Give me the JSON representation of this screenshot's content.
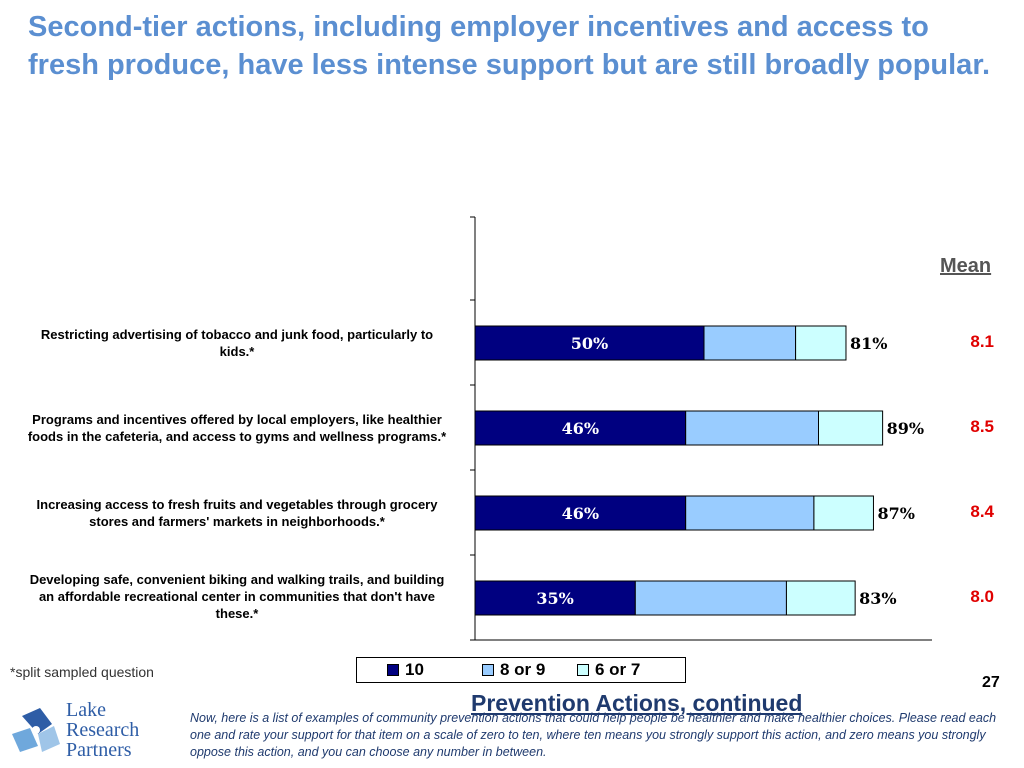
{
  "title": "Second-tier actions, including employer incentives and access to fresh produce, have less intense support but are still broadly popular.",
  "mean_header": "Mean",
  "chart_data": {
    "type": "bar",
    "stacked": true,
    "orientation": "horizontal",
    "categories": [
      "Restricting advertising of tobacco and junk food, particularly to kids.*",
      "Programs and incentives offered by local employers, like healthier foods in the cafeteria, and access to gyms and wellness programs.*",
      "Increasing access to fresh fruits and vegetables through grocery stores and farmers' markets in neighborhoods.*",
      "Developing safe, convenient biking and walking trails, and building an affordable recreational center in communities that don't have these.*"
    ],
    "category_lines": [
      [
        "Restricting advertising of tobacco and junk food, particularly to",
        "kids.*"
      ],
      [
        "Programs and incentives offered by local employers, like healthier",
        "foods in the cafeteria, and access to gyms and wellness programs.*"
      ],
      [
        "Increasing access to fresh fruits and vegetables through grocery",
        "stores and farmers' markets in neighborhoods.*"
      ],
      [
        "Developing safe, convenient biking and walking trails, and building",
        "an affordable recreational center in communities that don't have",
        "these.*"
      ]
    ],
    "series": [
      {
        "name": "10",
        "values": [
          50,
          46,
          46,
          35
        ],
        "color": "#000080"
      },
      {
        "name": "8 or 9",
        "values": [
          20,
          29,
          28,
          33
        ],
        "color": "#99ccff"
      },
      {
        "name": "6 or 7",
        "values": [
          11,
          14,
          13,
          15
        ],
        "color": "#ccffff"
      }
    ],
    "in_bar_labels": [
      "50%",
      "46%",
      "46%",
      "35%"
    ],
    "total_labels": [
      "81%",
      "89%",
      "87%",
      "83%"
    ],
    "means": [
      "8.1",
      "8.5",
      "8.4",
      "8.0"
    ],
    "xlim": [
      0,
      100
    ],
    "legend_position": "bottom",
    "grid": false
  },
  "legend": [
    {
      "label": "10",
      "color": "#000080"
    },
    {
      "label": "8 or 9",
      "color": "#99ccff"
    },
    {
      "label": "6 or 7",
      "color": "#ccffff"
    }
  ],
  "footnote": "*split sampled question",
  "page_number": "27",
  "section_title": "Prevention Actions, continued",
  "question_text": "Now, here is a list of examples of community prevention actions that could help people be healthier and make healthier choices. Please read each one and rate your support for that item on a scale of zero to ten, where ten means you strongly support this action, and zero means you strongly oppose this action, and you can choose any number in between.",
  "logo": {
    "lines": [
      "Lake",
      "Research",
      "Partners"
    ],
    "colors": [
      "#2e5da6",
      "#6fa8dc",
      "#9fc5e8"
    ]
  }
}
